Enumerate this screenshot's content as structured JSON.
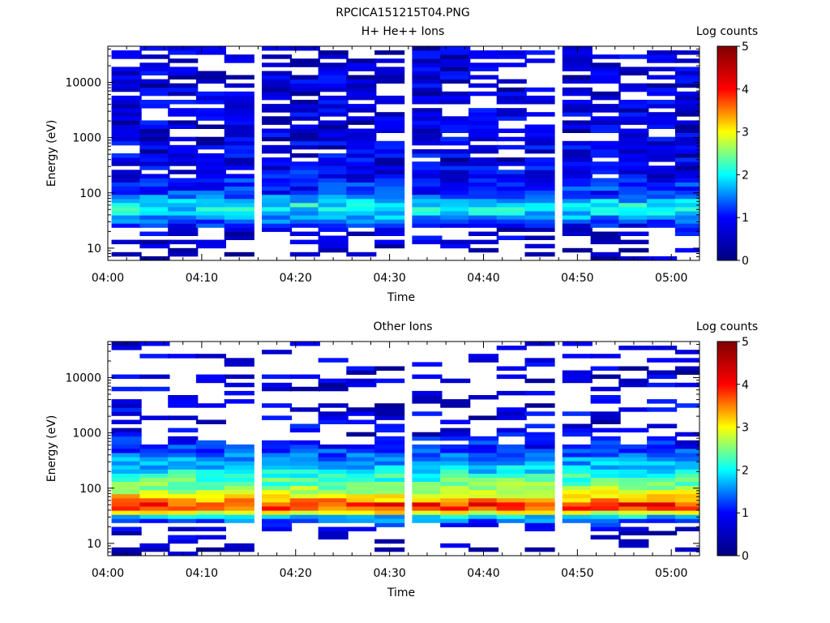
{
  "figure": {
    "title": "RPCICA151215T04.PNG"
  },
  "colorbar": {
    "colors": [
      "#000080",
      "#0000ff",
      "#00ffff",
      "#ffff00",
      "#ff0000",
      "#800000"
    ]
  },
  "chart_data": [
    {
      "type": "heatmap",
      "title": "H+ He++ Ions",
      "xlabel": "Time",
      "ylabel": "Energy (eV)",
      "x_ticks": [
        "04:00",
        "04:10",
        "04:20",
        "04:30",
        "04:40",
        "04:50",
        "05:00"
      ],
      "xlim": [
        "04:00",
        "05:03"
      ],
      "y_scale": "log",
      "y_ticks": [
        "10",
        "100",
        "1000",
        "10000"
      ],
      "ylim": [
        6,
        45000
      ],
      "colorbar": {
        "label": "Log counts",
        "range": [
          0,
          5
        ],
        "ticks": [
          "0",
          "1",
          "2",
          "3",
          "4",
          "5"
        ]
      },
      "time_bins": [
        "04:02",
        "04:05",
        "04:08",
        "04:11",
        "04:14",
        "04:18",
        "04:21",
        "04:24",
        "04:27",
        "04:30",
        "04:34",
        "04:37",
        "04:40",
        "04:43",
        "04:46",
        "04:50",
        "04:53",
        "04:56",
        "04:59",
        "05:02"
      ],
      "profile": {
        "energies_eV": [
          10,
          20,
          30,
          40,
          60,
          100,
          300,
          1000,
          3000,
          10000,
          40000
        ],
        "typical_log_counts": [
          0.2,
          0.4,
          1.0,
          1.6,
          1.9,
          0.9,
          0.5,
          0.4,
          0.35,
          0.35,
          0.3
        ],
        "peak_log_counts": 2.6,
        "peak_energy_eV": 50
      }
    },
    {
      "type": "heatmap",
      "title": "Other Ions",
      "xlabel": "Time",
      "ylabel": "Energy (eV)",
      "x_ticks": [
        "04:00",
        "04:10",
        "04:20",
        "04:30",
        "04:40",
        "04:50",
        "05:00"
      ],
      "xlim": [
        "04:00",
        "05:03"
      ],
      "y_scale": "log",
      "y_ticks": [
        "10",
        "100",
        "1000",
        "10000"
      ],
      "ylim": [
        6,
        45000
      ],
      "colorbar": {
        "label": "Log counts",
        "range": [
          0,
          5
        ],
        "ticks": [
          "0",
          "1",
          "2",
          "3",
          "4",
          "5"
        ]
      },
      "time_bins": [
        "04:02",
        "04:05",
        "04:08",
        "04:11",
        "04:14",
        "04:18",
        "04:21",
        "04:24",
        "04:27",
        "04:30",
        "04:34",
        "04:37",
        "04:40",
        "04:43",
        "04:46",
        "04:50",
        "04:53",
        "04:56",
        "04:59",
        "05:02"
      ],
      "profile": {
        "energies_eV": [
          10,
          20,
          30,
          40,
          50,
          60,
          100,
          200,
          300,
          500,
          1000,
          3000,
          10000
        ],
        "typical_log_counts": [
          0.2,
          0.4,
          1.5,
          3.8,
          4.2,
          3.6,
          2.6,
          1.8,
          1.4,
          0.9,
          0.5,
          0.4,
          0.3
        ],
        "peak_log_counts": 4.6,
        "peak_energy_eV": 45
      }
    }
  ]
}
